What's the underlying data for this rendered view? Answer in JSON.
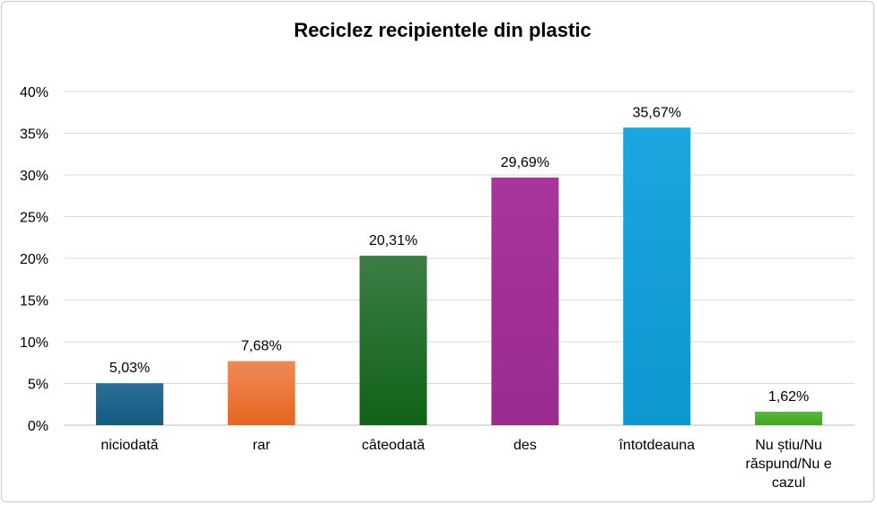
{
  "chart_data": {
    "type": "bar",
    "title": "Reciclez recipientele din plastic",
    "xlabel": "",
    "ylabel": "",
    "ylim": [
      0,
      40
    ],
    "y_ticks": [
      0,
      5,
      10,
      15,
      20,
      25,
      30,
      35,
      40
    ],
    "y_tick_labels": [
      "0%",
      "5%",
      "10%",
      "15%",
      "20%",
      "25%",
      "30%",
      "35%",
      "40%"
    ],
    "grid": true,
    "legend": "none",
    "categories": [
      [
        "niciodată"
      ],
      [
        "rar"
      ],
      [
        "câteodată"
      ],
      [
        "des"
      ],
      [
        "întotdeauna"
      ],
      [
        "Nu știu/Nu",
        "răspund/Nu e",
        "cazul"
      ]
    ],
    "values": [
      5.03,
      7.68,
      20.31,
      29.69,
      35.67,
      1.62
    ],
    "value_labels": [
      "5,03%",
      "7,68%",
      "20,31%",
      "29,69%",
      "35,67%",
      "1,62%"
    ],
    "colors": [
      [
        "#2a6f97",
        "#155a80"
      ],
      [
        "#f0895a",
        "#e5661d"
      ],
      [
        "#3d7d45",
        "#0f6316"
      ],
      [
        "#a8359a",
        "#992b90"
      ],
      [
        "#1aa6de",
        "#0e98d2"
      ],
      [
        "#5cb83a",
        "#41a521"
      ]
    ]
  }
}
